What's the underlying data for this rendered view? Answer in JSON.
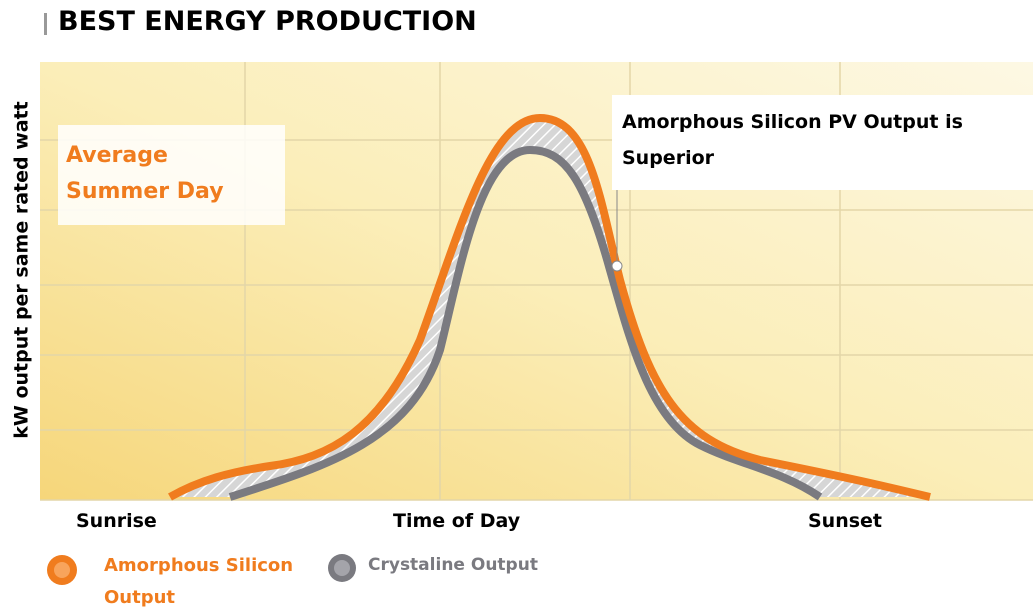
{
  "header": {
    "title": "BEST ENERGY PRODUCTION"
  },
  "chart": {
    "y_label": "kW output per same rated watt",
    "x_labels": {
      "start": "Sunrise",
      "middle": "Time of Day",
      "end": "Sunset"
    },
    "notes": {
      "period": "Average Summer Day",
      "callout": "Amorphous Silicon PV Output is Superior"
    },
    "legend": [
      {
        "name": "Amorphous Silicon Output",
        "color": "#f07c1e"
      },
      {
        "name": "Crystaline Output",
        "color": "#7a7a80"
      }
    ]
  }
}
